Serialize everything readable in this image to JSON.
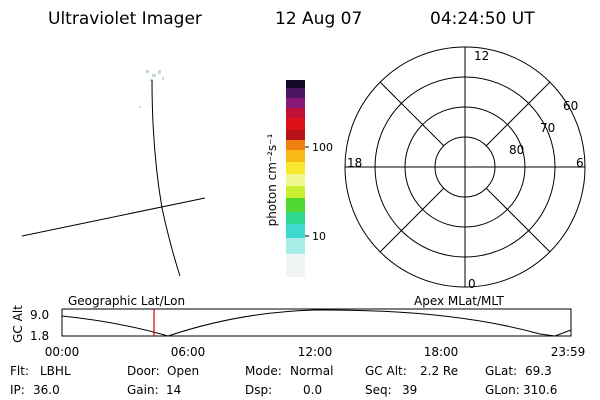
{
  "header": {
    "title": "Ultraviolet Imager",
    "date": "12 Aug 07",
    "time": "04:24:50 UT"
  },
  "colorbar": {
    "label": "photon cm⁻²s⁻¹",
    "ticks": [
      "100",
      "10"
    ]
  },
  "polar": {
    "mlt_labels": [
      "12",
      "6",
      "0",
      "18"
    ],
    "lat_labels": [
      "60",
      "70",
      "80"
    ]
  },
  "timeline": {
    "left_label": "Geographic Lat/Lon",
    "right_label": "Apex MLat/MLT",
    "y_axis_label": "GC Alt",
    "yticks": [
      "9.0",
      "1.8"
    ],
    "xticks": [
      "00:00",
      "06:00",
      "12:00",
      "18:00",
      "23:59"
    ]
  },
  "status": [
    {
      "label": "Flt:",
      "value": "LBHL"
    },
    {
      "label": "Door:",
      "value": "Open"
    },
    {
      "label": "Mode:",
      "value": "Normal"
    },
    {
      "label": "GC Alt:",
      "value": "2.2 Re"
    },
    {
      "label": "GLat:",
      "value": "69.3"
    },
    {
      "label": "IP:",
      "value": "36.0"
    },
    {
      "label": "Gain:",
      "value": "14"
    },
    {
      "label": "Dsp:",
      "value": "0.0"
    },
    {
      "label": "Seq:",
      "value": "39"
    },
    {
      "label": "GLon:",
      "value": "310.6"
    }
  ]
}
